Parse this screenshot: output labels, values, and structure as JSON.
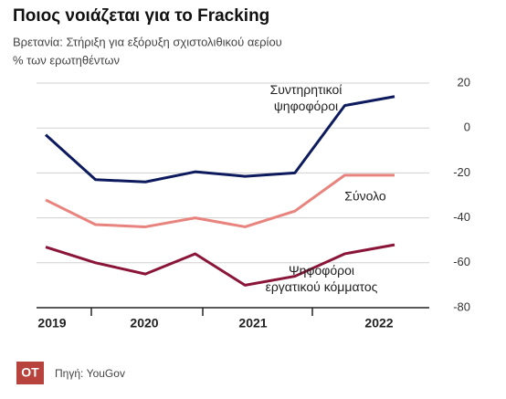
{
  "title": "Ποιος νοιάζεται για το Fracking",
  "subtitle": "Βρετανία: Στήριξη για εξόρυξη σχιστολιθικού αερίου",
  "unit_note": "% των ερωτηθέντων",
  "source": "Πηγή: YouGov",
  "logo": "OT",
  "chart_data": {
    "type": "line",
    "year_labels": [
      "2019",
      "2020",
      "2021",
      "2022"
    ],
    "ylim": [
      -80,
      20
    ],
    "yticks": [
      20,
      0,
      -20,
      -40,
      -60,
      -80
    ],
    "grid": true,
    "series": [
      {
        "name": "Συντηρητικοί ψηφοφόροι",
        "color": "#0d1b5e",
        "values": [
          -3,
          -23,
          -24,
          -19.5,
          -21.5,
          -20,
          10,
          14
        ]
      },
      {
        "name": "Σύνολο",
        "color": "#e8837e",
        "values": [
          -32,
          -43,
          -44,
          -40,
          -44,
          -37,
          -21,
          -21
        ]
      },
      {
        "name": "Ψηφοφόροι εργατικού κόμματος",
        "color": "#8b1538",
        "values": [
          -53,
          -60,
          -65,
          -56,
          -70,
          -66,
          -56,
          -52
        ]
      }
    ]
  }
}
